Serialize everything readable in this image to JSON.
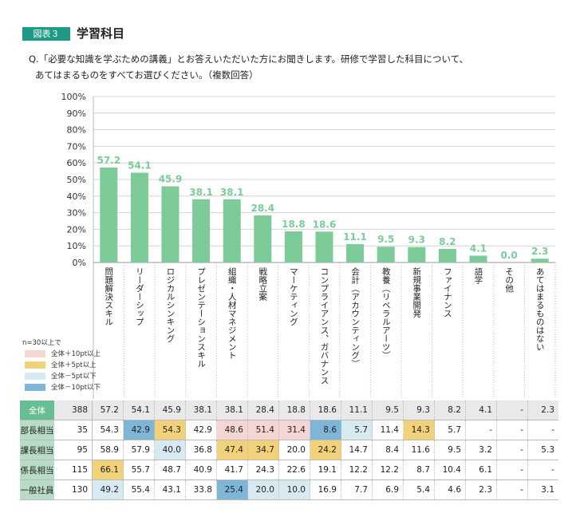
{
  "figure_label": "図表３",
  "figure_title": "学習科目",
  "question_line1": "Q.「必要な知識を学ぶための講義」とお答えいただいた方にお聞きします。研修で学習した科目について、",
  "question_line2": "あてはまるものをすべてお選びください。（複数回答）",
  "legend": {
    "title": "n=30以上で",
    "items": [
      {
        "label": "全体＋10pt以上",
        "color": "#f6d6d3"
      },
      {
        "label": "全体＋5pt以上",
        "color": "#f1d27a"
      },
      {
        "label": "全体－5pt以下",
        "color": "#d7eaf2"
      },
      {
        "label": "全体－10pt以下",
        "color": "#7db6d6"
      }
    ]
  },
  "colors": {
    "bar": "#7ccb99",
    "value_label": "#7ccb99",
    "grid": "#d4d4d4"
  },
  "chart_data": {
    "type": "bar",
    "categories": [
      "問題解決スキル",
      "リーダーシップ",
      "ロジカルシンキング",
      "プレゼンテーションスキル",
      "組織・人材マネジメント",
      "戦略立案",
      "マーケティング",
      "コンプライアンス、ガバナンス",
      "会計（アカウンティング）",
      "教養（リベラルアーツ）",
      "新規事業開発",
      "ファイナンス",
      "語学",
      "その他",
      "あてはまるものはない"
    ],
    "values": [
      57.2,
      54.1,
      45.9,
      38.1,
      38.1,
      28.4,
      18.8,
      18.6,
      11.1,
      9.5,
      9.3,
      8.2,
      4.1,
      0.0,
      2.3
    ],
    "value_labels": [
      "57.2",
      "54.1",
      "45.9",
      "38.1",
      "38.1",
      "28.4",
      "18.8",
      "18.6",
      "11.1",
      "9.5",
      "9.3",
      "8.2",
      "4.1",
      "0.0",
      "2.3"
    ],
    "y_ticks": [
      "0%",
      "10%",
      "20%",
      "30%",
      "40%",
      "50%",
      "60%",
      "70%",
      "80%",
      "90%",
      "100%"
    ],
    "ylim": [
      0,
      100
    ],
    "grid": true
  },
  "table": {
    "rows": [
      {
        "name": "全体",
        "n": "388",
        "values": [
          "57.2",
          "54.1",
          "45.9",
          "38.1",
          "38.1",
          "28.4",
          "18.8",
          "18.6",
          "11.1",
          "9.5",
          "9.3",
          "8.2",
          "4.1",
          "-",
          "2.3"
        ],
        "highlights": [
          "",
          "",
          "",
          "",
          "",
          "",
          "",
          "",
          "",
          "",
          "",
          "",
          "",
          "",
          ""
        ]
      },
      {
        "name": "部長相当",
        "n": "35",
        "values": [
          "54.3",
          "42.9",
          "54.3",
          "42.9",
          "48.6",
          "51.4",
          "31.4",
          "8.6",
          "5.7",
          "11.4",
          "14.3",
          "5.7",
          "-",
          "-",
          "-"
        ],
        "highlights": [
          "",
          "minus10",
          "plus5",
          "",
          "plus10",
          "plus10",
          "plus10",
          "minus10",
          "minus5",
          "",
          "plus5",
          "",
          "",
          "",
          ""
        ]
      },
      {
        "name": "課長相当",
        "n": "95",
        "values": [
          "58.9",
          "57.9",
          "40.0",
          "36.8",
          "47.4",
          "34.7",
          "20.0",
          "24.2",
          "14.7",
          "8.4",
          "11.6",
          "9.5",
          "3.2",
          "-",
          "5.3"
        ],
        "highlights": [
          "",
          "",
          "minus5",
          "",
          "plus5",
          "plus5",
          "",
          "plus5",
          "",
          "",
          "",
          "",
          "",
          "",
          ""
        ]
      },
      {
        "name": "係長相当",
        "n": "115",
        "values": [
          "66.1",
          "55.7",
          "48.7",
          "40.9",
          "41.7",
          "24.3",
          "22.6",
          "19.1",
          "12.2",
          "12.2",
          "8.7",
          "10.4",
          "6.1",
          "-",
          "-"
        ],
        "highlights": [
          "plus5",
          "",
          "",
          "",
          "",
          "",
          "",
          "",
          "",
          "",
          "",
          "",
          "",
          "",
          ""
        ]
      },
      {
        "name": "一般社員",
        "n": "130",
        "values": [
          "49.2",
          "55.4",
          "43.1",
          "33.8",
          "25.4",
          "20.0",
          "10.0",
          "16.9",
          "7.7",
          "6.9",
          "5.4",
          "4.6",
          "2.3",
          "-",
          "3.1"
        ],
        "highlights": [
          "minus5",
          "",
          "",
          "",
          "minus10",
          "minus5",
          "minus5",
          "",
          "",
          "",
          "",
          "",
          "",
          "",
          ""
        ]
      }
    ]
  }
}
